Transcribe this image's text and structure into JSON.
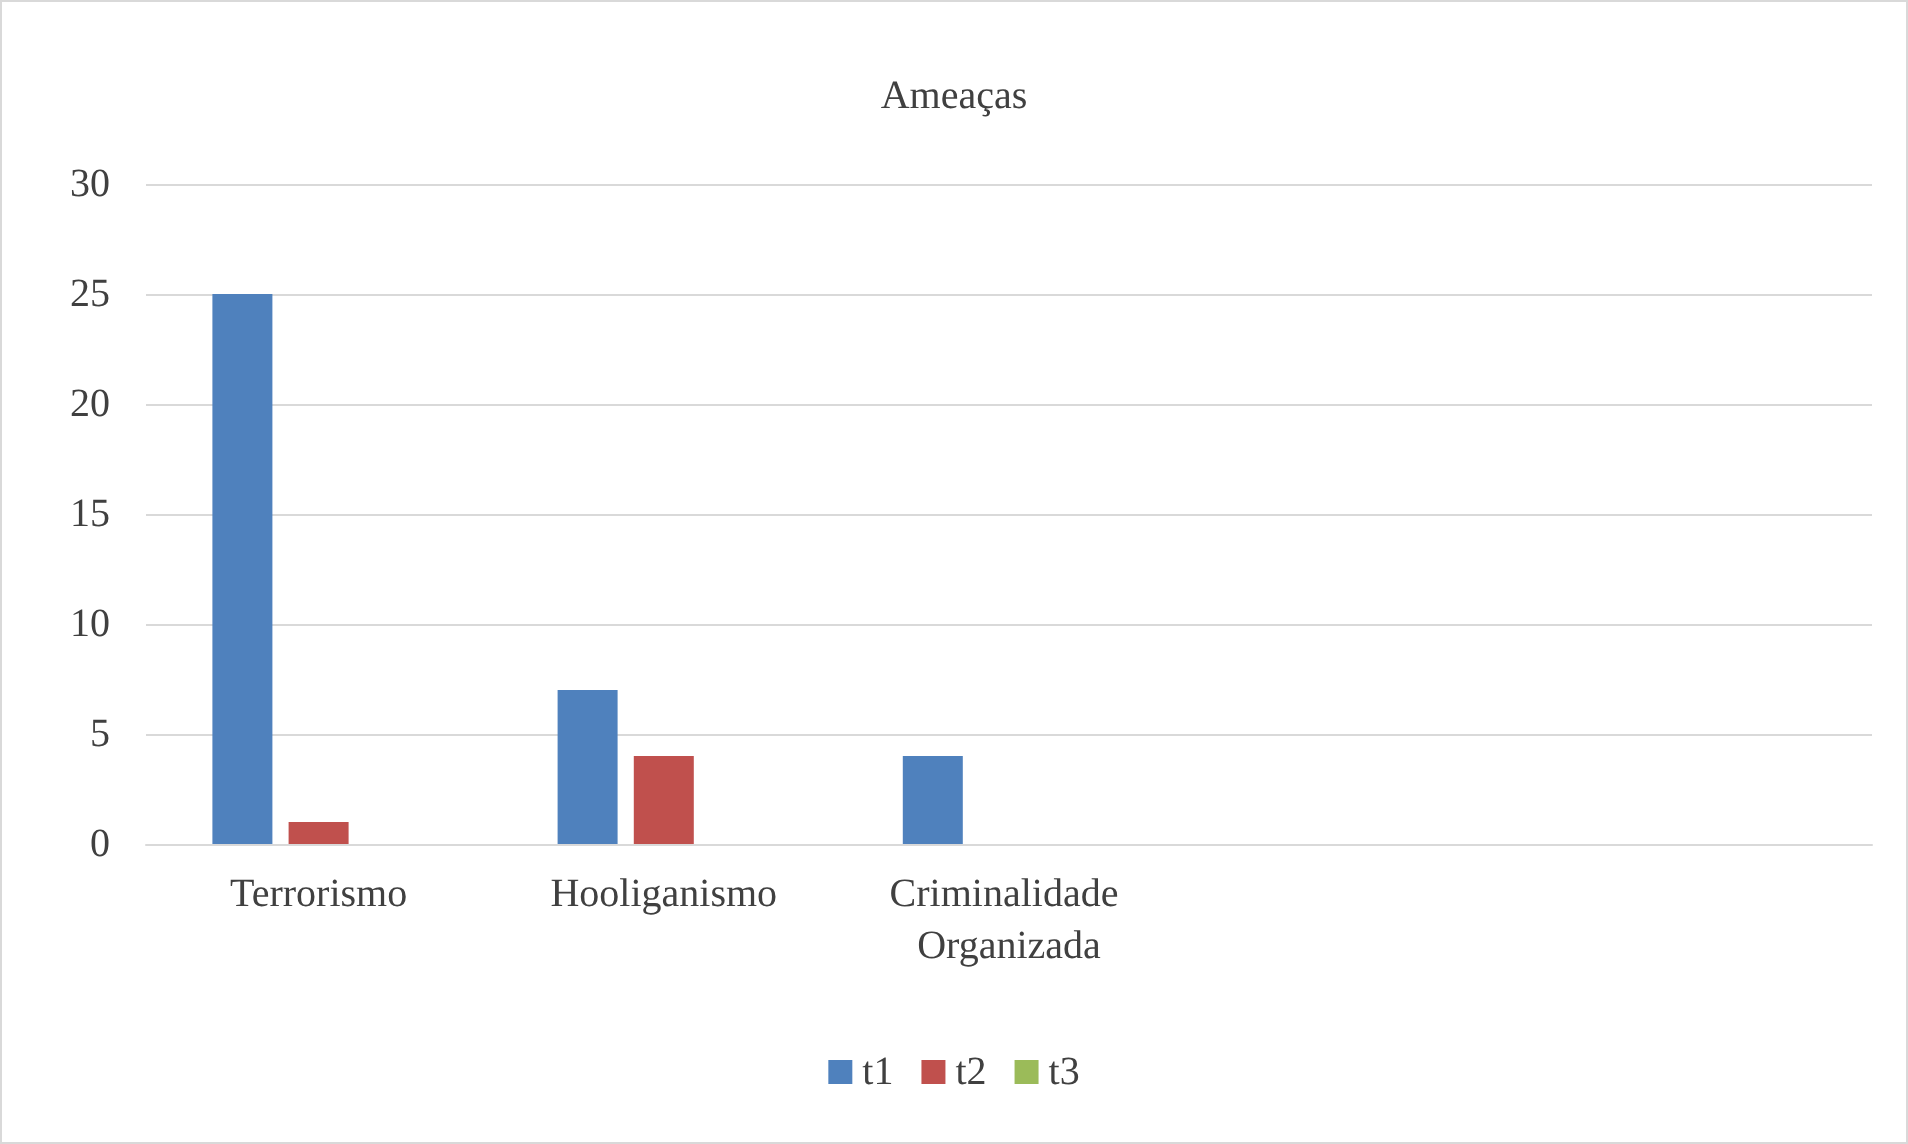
{
  "chart_data": {
    "type": "bar",
    "title": "Ameaças",
    "categories": [
      "Terrorismo",
      "Hooliganismo",
      "Criminalidade Organizada",
      null,
      null
    ],
    "series": [
      {
        "name": "t1",
        "color": "#4f81bd",
        "values": [
          25,
          7,
          4,
          null,
          null
        ]
      },
      {
        "name": "t2",
        "color": "#c0504d",
        "values": [
          1,
          4,
          0,
          null,
          null
        ]
      },
      {
        "name": "t3",
        "color": "#9bbb59",
        "values": [
          0,
          0,
          0,
          null,
          null
        ]
      }
    ],
    "ylim": [
      0,
      30
    ],
    "yticks": [
      0,
      5,
      10,
      15,
      20,
      25,
      30
    ],
    "grid": "y",
    "legend": "bottom"
  }
}
